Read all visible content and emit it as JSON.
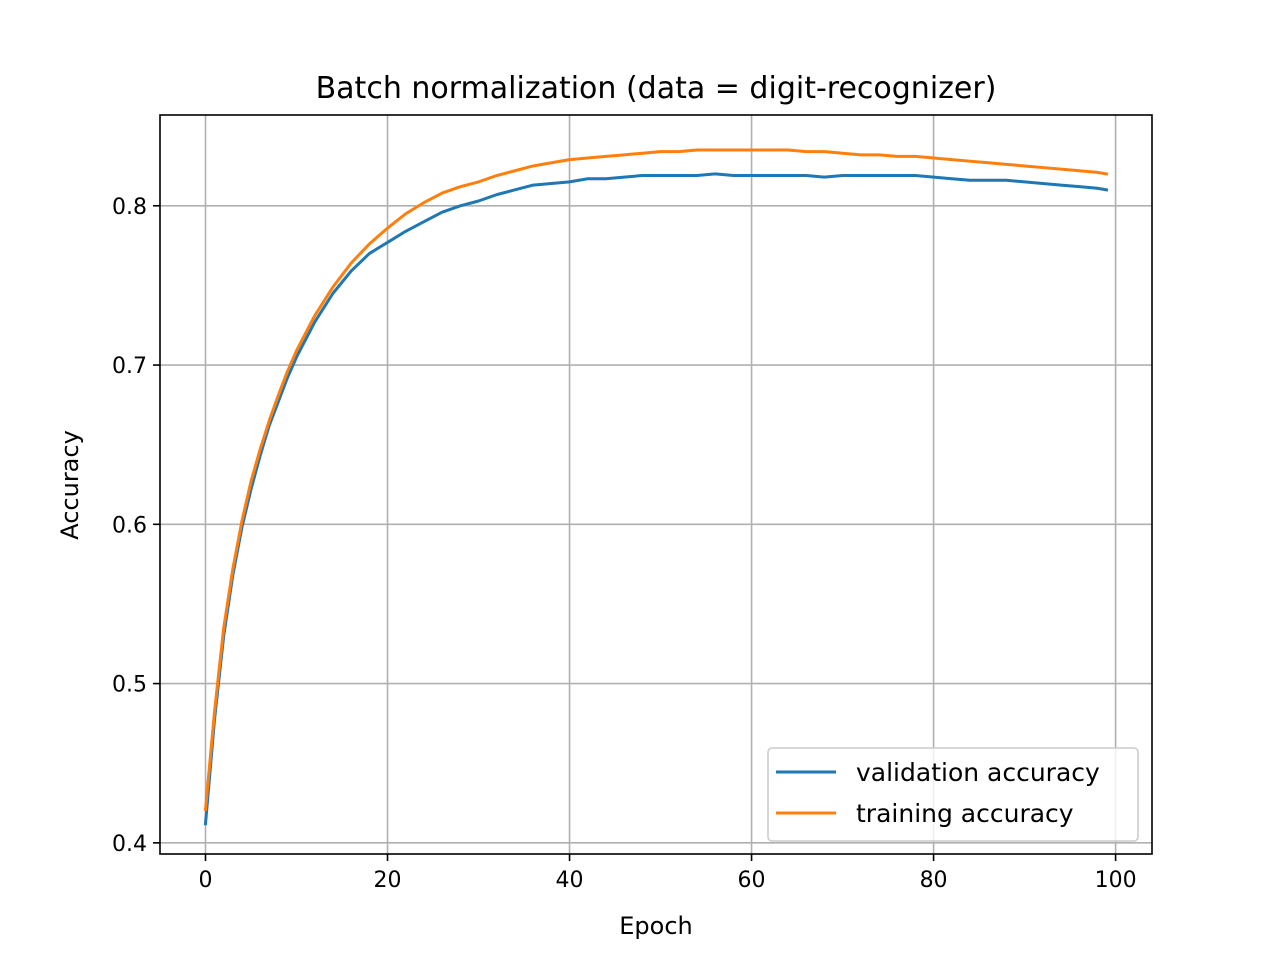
{
  "chart_data": {
    "type": "line",
    "title": "Batch normalization (data = digit-recognizer)",
    "xlabel": "Epoch",
    "ylabel": "Accuracy",
    "xlim": [
      -5,
      104
    ],
    "ylim": [
      0.393,
      0.857
    ],
    "xticks": [
      0,
      20,
      40,
      60,
      80,
      100
    ],
    "xtick_labels": [
      "0",
      "20",
      "40",
      "60",
      "80",
      "100"
    ],
    "yticks": [
      0.4,
      0.5,
      0.6,
      0.7,
      0.8
    ],
    "ytick_labels": [
      "0.4",
      "0.5",
      "0.6",
      "0.7",
      "0.8"
    ],
    "grid": true,
    "legend_position": "lower-right",
    "series": [
      {
        "name": "validation accuracy",
        "color": "#1f77b4",
        "x": [
          0,
          1,
          2,
          3,
          4,
          5,
          6,
          7,
          8,
          9,
          10,
          12,
          14,
          16,
          18,
          20,
          22,
          24,
          26,
          28,
          30,
          32,
          34,
          36,
          38,
          40,
          42,
          44,
          46,
          48,
          50,
          52,
          54,
          56,
          58,
          60,
          62,
          64,
          66,
          68,
          70,
          72,
          74,
          76,
          78,
          80,
          82,
          84,
          86,
          88,
          90,
          92,
          94,
          96,
          98,
          99
        ],
        "values": [
          0.412,
          0.478,
          0.53,
          0.568,
          0.598,
          0.622,
          0.643,
          0.662,
          0.677,
          0.692,
          0.705,
          0.727,
          0.745,
          0.759,
          0.77,
          0.777,
          0.784,
          0.79,
          0.796,
          0.8,
          0.803,
          0.807,
          0.81,
          0.813,
          0.814,
          0.815,
          0.817,
          0.817,
          0.818,
          0.819,
          0.819,
          0.819,
          0.819,
          0.82,
          0.819,
          0.819,
          0.819,
          0.819,
          0.819,
          0.818,
          0.819,
          0.819,
          0.819,
          0.819,
          0.819,
          0.818,
          0.817,
          0.816,
          0.816,
          0.816,
          0.815,
          0.814,
          0.813,
          0.812,
          0.811,
          0.81
        ]
      },
      {
        "name": "training accuracy",
        "color": "#ff7f0e",
        "x": [
          0,
          1,
          2,
          3,
          4,
          5,
          6,
          7,
          8,
          9,
          10,
          12,
          14,
          16,
          18,
          20,
          22,
          24,
          26,
          28,
          30,
          32,
          34,
          36,
          38,
          40,
          42,
          44,
          46,
          48,
          50,
          52,
          54,
          56,
          58,
          60,
          62,
          64,
          66,
          68,
          70,
          72,
          74,
          76,
          78,
          80,
          82,
          84,
          86,
          88,
          90,
          92,
          94,
          96,
          98,
          99
        ],
        "values": [
          0.421,
          0.483,
          0.535,
          0.572,
          0.602,
          0.627,
          0.647,
          0.665,
          0.681,
          0.696,
          0.709,
          0.731,
          0.749,
          0.764,
          0.776,
          0.786,
          0.795,
          0.802,
          0.808,
          0.812,
          0.815,
          0.819,
          0.822,
          0.825,
          0.827,
          0.829,
          0.83,
          0.831,
          0.832,
          0.833,
          0.834,
          0.834,
          0.835,
          0.835,
          0.835,
          0.835,
          0.835,
          0.835,
          0.834,
          0.834,
          0.833,
          0.832,
          0.832,
          0.831,
          0.831,
          0.83,
          0.829,
          0.828,
          0.827,
          0.826,
          0.825,
          0.824,
          0.823,
          0.822,
          0.821,
          0.82
        ]
      }
    ]
  }
}
